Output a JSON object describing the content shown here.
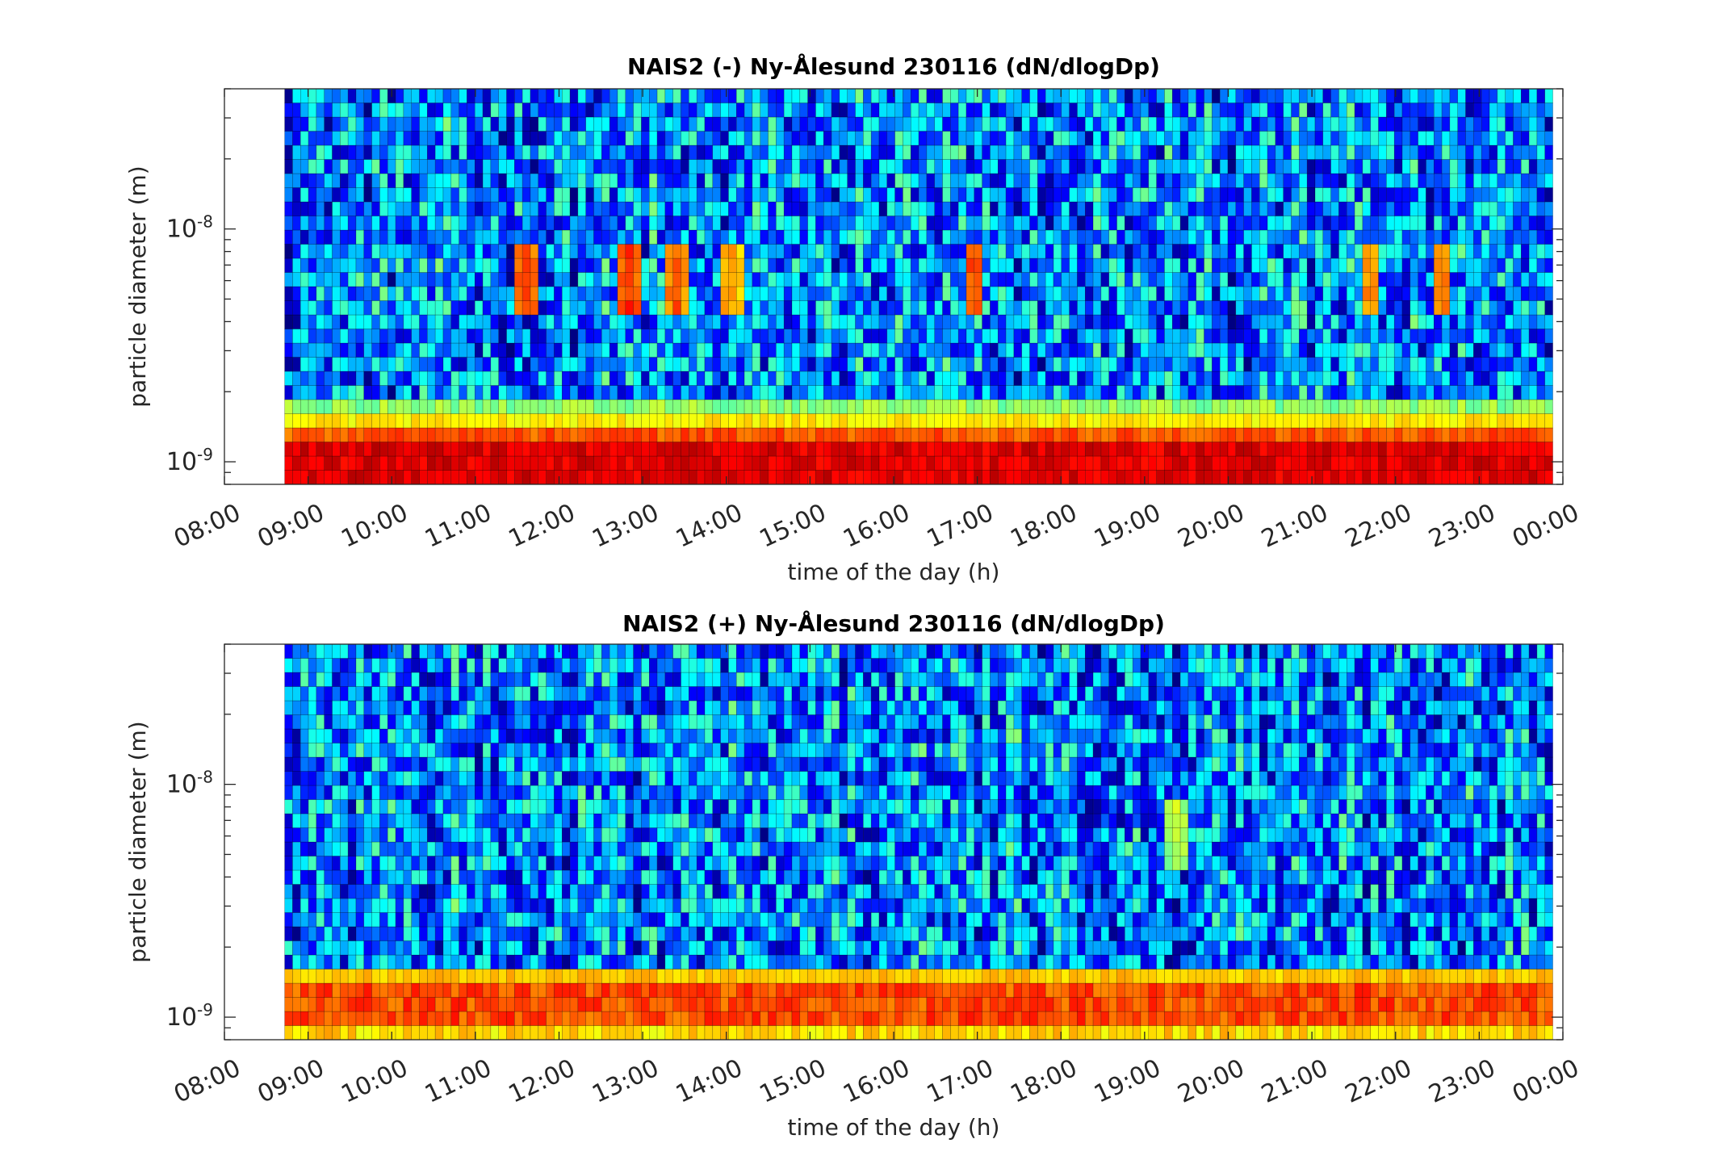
{
  "chart_data": [
    {
      "type": "heatmap",
      "title": "NAIS2 (-) Ny-Ålesund 230116 (dN/dlogDp)",
      "xlabel": "time of the day (h)",
      "ylabel": "particle diameter (m)",
      "x_ticks": [
        "08:00",
        "09:00",
        "10:00",
        "11:00",
        "12:00",
        "13:00",
        "14:00",
        "15:00",
        "16:00",
        "17:00",
        "18:00",
        "19:00",
        "20:00",
        "21:00",
        "22:00",
        "23:00",
        "00:00"
      ],
      "y_ticks": [
        {
          "base": "10",
          "exp": "-9",
          "value": 1e-09
        },
        {
          "base": "10",
          "exp": "-8",
          "value": 1e-08
        }
      ],
      "x_range_hours": [
        8,
        24
      ],
      "data_start_hour": 8.72,
      "data_end_hour": 23.88,
      "y_range_m": [
        8e-10,
        4e-08
      ],
      "y_scale": "log",
      "n_time_bins": 160,
      "n_size_bins": 28,
      "colormap": "jet",
      "colors": {
        "low": "#00008f",
        "high": "#ff0000"
      },
      "events": [
        {
          "hour": 11.6,
          "level": 0.87
        },
        {
          "hour": 12.85,
          "level": 0.88
        },
        {
          "hour": 13.4,
          "level": 0.84
        },
        {
          "hour": 14.05,
          "level": 0.78
        },
        {
          "hour": 16.95,
          "level": 0.85
        },
        {
          "hour": 21.7,
          "level": 0.8
        },
        {
          "hour": 22.55,
          "level": 0.82
        }
      ]
    },
    {
      "type": "heatmap",
      "title": "NAIS2 (+) Ny-Ålesund 230116 (dN/dlogDp)",
      "xlabel": "time of the day (h)",
      "ylabel": "particle diameter (m)",
      "x_ticks": [
        "08:00",
        "09:00",
        "10:00",
        "11:00",
        "12:00",
        "13:00",
        "14:00",
        "15:00",
        "16:00",
        "17:00",
        "18:00",
        "19:00",
        "20:00",
        "21:00",
        "22:00",
        "23:00",
        "00:00"
      ],
      "y_ticks": [
        {
          "base": "10",
          "exp": "-9",
          "value": 1e-09
        },
        {
          "base": "10",
          "exp": "-8",
          "value": 1e-08
        }
      ],
      "x_range_hours": [
        8,
        24
      ],
      "data_start_hour": 8.72,
      "data_end_hour": 23.88,
      "y_range_m": [
        8e-10,
        4e-08
      ],
      "y_scale": "log",
      "n_time_bins": 160,
      "n_size_bins": 28,
      "colormap": "jet",
      "colors": {
        "low": "#00008f",
        "high": "#ff0000"
      },
      "events": [
        {
          "hour": 19.4,
          "level": 0.62
        }
      ]
    }
  ]
}
